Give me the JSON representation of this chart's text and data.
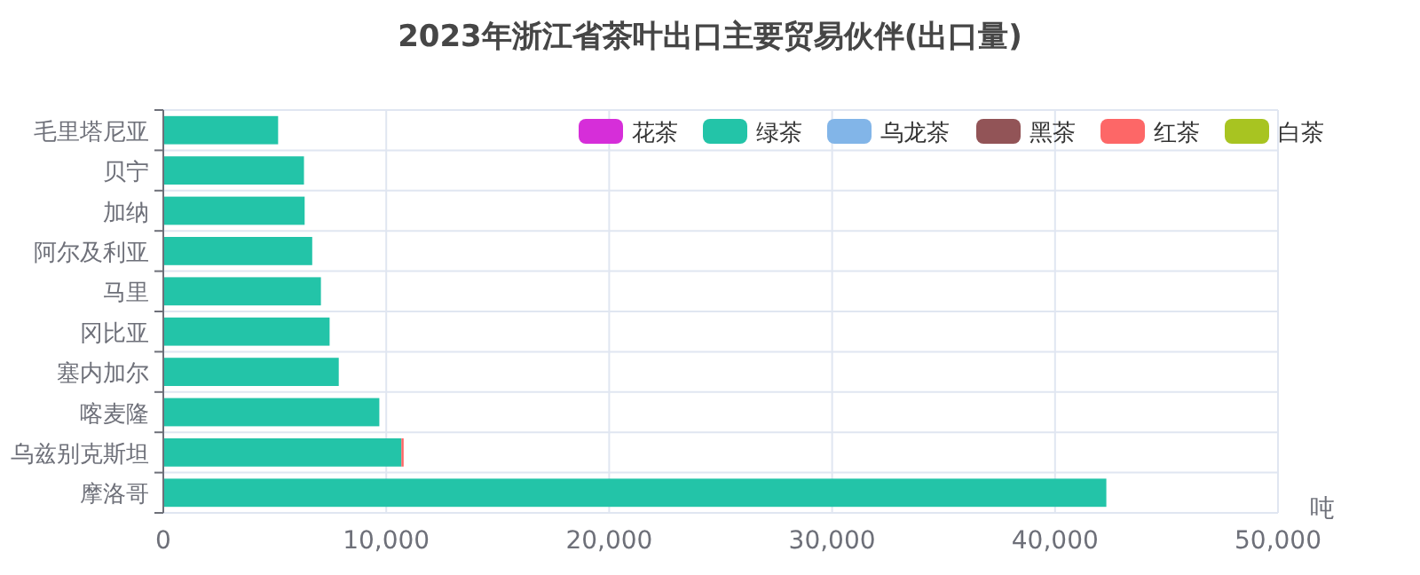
{
  "chart_data": {
    "type": "bar",
    "title": "2023年浙江省茶叶出口主要贸易伙伴(出口量)",
    "xlabel": "吨",
    "orientation": "horizontal",
    "stacked": true,
    "categories": [
      "毛里塔尼亚",
      "贝宁",
      "加纳",
      "阿尔及利亚",
      "马里",
      "冈比亚",
      "塞内加尔",
      "喀麦隆",
      "乌兹别克斯坦",
      "摩洛哥"
    ],
    "series": [
      {
        "name": "花茶",
        "color": "#d62ed9",
        "values": [
          0,
          0,
          0,
          0,
          0,
          0,
          0,
          0,
          0,
          0
        ]
      },
      {
        "name": "绿茶",
        "color": "#23c4a8",
        "values": [
          5150,
          6310,
          6340,
          6680,
          7070,
          7460,
          7870,
          9690,
          10680,
          42300
        ]
      },
      {
        "name": "乌龙茶",
        "color": "#82b5e8",
        "values": [
          0,
          0,
          0,
          0,
          0,
          0,
          0,
          0,
          0,
          0
        ]
      },
      {
        "name": "黑茶",
        "color": "#925457",
        "values": [
          0,
          0,
          0,
          0,
          0,
          0,
          0,
          0,
          0,
          0
        ]
      },
      {
        "name": "红茶",
        "color": "#fd6767",
        "values": [
          0,
          0,
          0,
          0,
          0,
          0,
          0,
          0,
          100,
          0
        ]
      },
      {
        "name": "白茶",
        "color": "#a8c421",
        "values": [
          0,
          0,
          0,
          0,
          0,
          0,
          0,
          0,
          0,
          0
        ]
      }
    ],
    "xlim": [
      0,
      50000
    ],
    "xticks": [
      0,
      {
        "value": 10000,
        "label": "10,000"
      },
      {
        "value": 20000,
        "label": "20,000"
      },
      {
        "value": 30000,
        "label": "30,000"
      },
      {
        "value": 40000,
        "label": "40,000"
      },
      {
        "value": 50000,
        "label": "50,000"
      }
    ],
    "grid": true,
    "legend": "top right"
  }
}
